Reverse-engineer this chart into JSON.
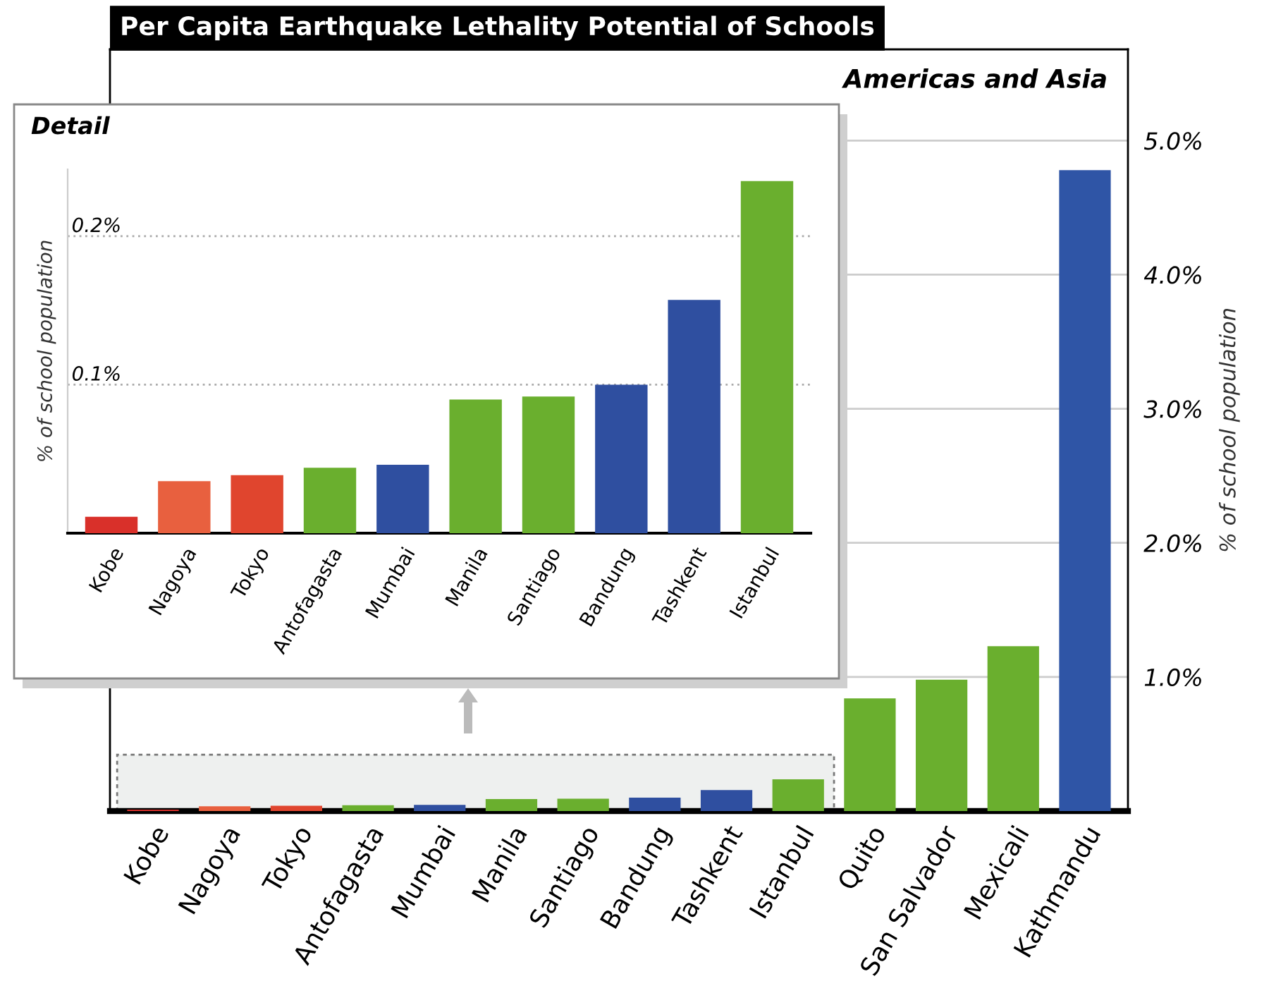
{
  "chart_data": [
    {
      "type": "bar",
      "title": "Per Capita Earthquake Lethality Potential of Schools",
      "subtitle": "Americas and Asia",
      "ylabel": "% of school population",
      "categories": [
        "Kobe",
        "Nagoya",
        "Tokyo",
        "Antofagasta",
        "Mumbai",
        "Manila",
        "Santiago",
        "Bandung",
        "Tashkent",
        "Istanbul",
        "Quito",
        "San Salvador",
        "Mexicali",
        "Kathmandu"
      ],
      "values": [
        0.011,
        0.035,
        0.039,
        0.044,
        0.046,
        0.09,
        0.092,
        0.1,
        0.157,
        0.237,
        0.84,
        0.98,
        1.23,
        4.78
      ],
      "colors": [
        "#d9302a",
        "#e8603f",
        "#e0452e",
        "#6aaf2e",
        "#2f4fa0",
        "#6aaf2e",
        "#6aaf2e",
        "#2f4fa0",
        "#2f4fa0",
        "#6aaf2e",
        "#6aaf2e",
        "#6aaf2e",
        "#6aaf2e",
        "#2f55a6"
      ],
      "ylim": [
        0,
        5.68
      ],
      "yticks": [
        {
          "value": 1,
          "label": "1.0%"
        },
        {
          "value": 2,
          "label": "2.0%"
        },
        {
          "value": 3,
          "label": "3.0%"
        },
        {
          "value": 4,
          "label": "4.0%"
        },
        {
          "value": 5,
          "label": "5.0%"
        }
      ],
      "grid": "y"
    },
    {
      "type": "bar",
      "title": "Detail",
      "ylabel": "% of school population",
      "categories": [
        "Kobe",
        "Nagoya",
        "Tokyo",
        "Antofagasta",
        "Mumbai",
        "Manila",
        "Santiago",
        "Bandung",
        "Tashkent",
        "Istanbul"
      ],
      "values": [
        0.011,
        0.035,
        0.039,
        0.044,
        0.046,
        0.09,
        0.092,
        0.1,
        0.157,
        0.237
      ],
      "colors": [
        "#d9302a",
        "#e8603f",
        "#e0452e",
        "#6aaf2e",
        "#2f4fa0",
        "#6aaf2e",
        "#6aaf2e",
        "#2f4fa0",
        "#2f4fa0",
        "#6aaf2e"
      ],
      "ylim": [
        0,
        0.245
      ],
      "yticks": [
        {
          "value": 0.1,
          "label": "0.1%"
        },
        {
          "value": 0.2,
          "label": "0.2%"
        }
      ],
      "grid": "y"
    }
  ]
}
